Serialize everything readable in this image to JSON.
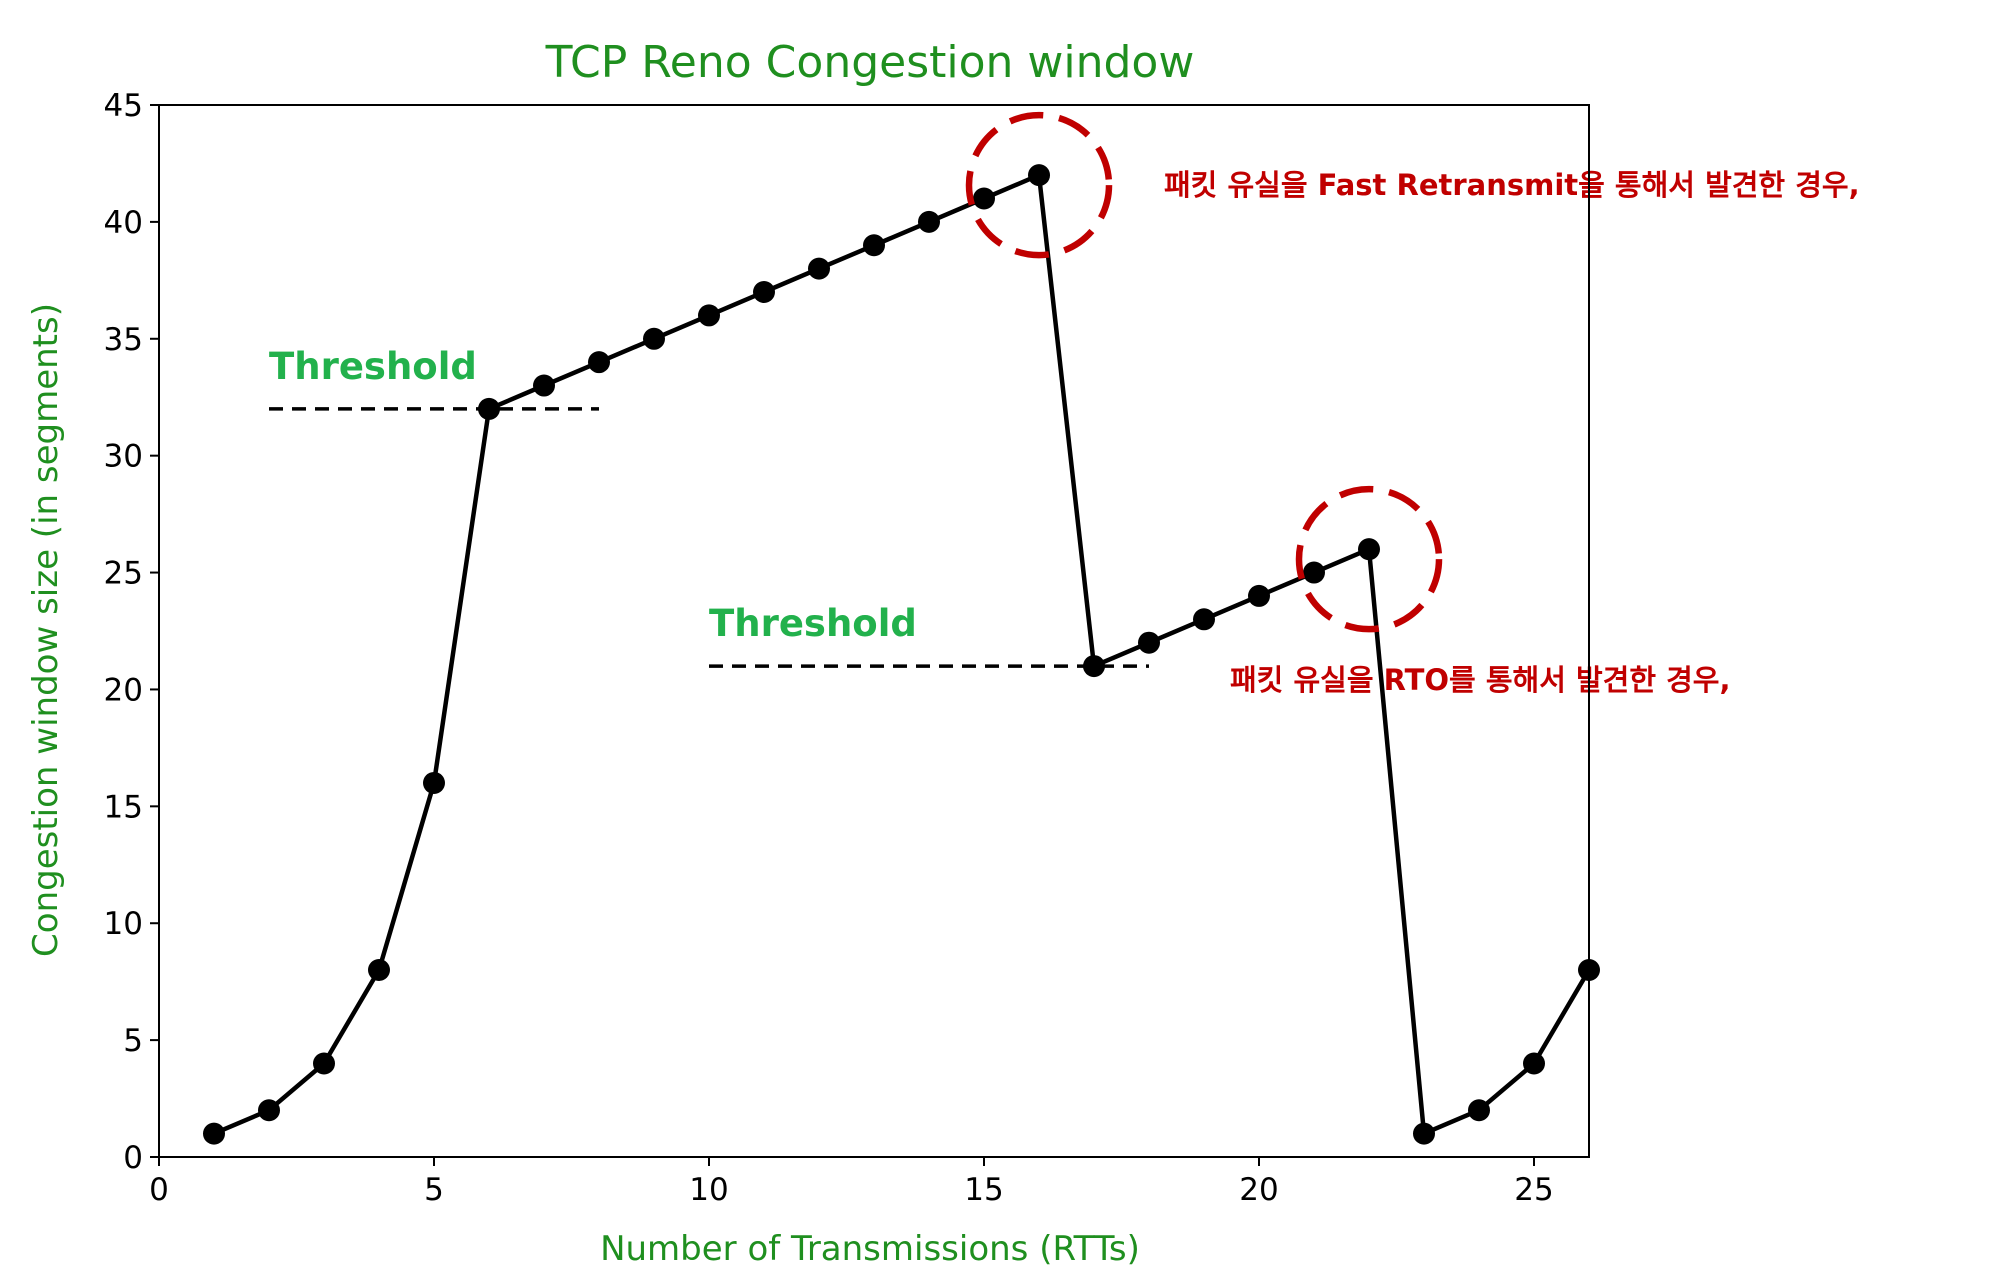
{
  "chart_data": {
    "type": "line",
    "title": "TCP Reno Congestion window",
    "xlabel": "Number of Transmissions (RTTs)",
    "ylabel": "Congestion window size (in segments)",
    "xlim": [
      0,
      26
    ],
    "ylim": [
      0,
      45
    ],
    "xticks": [
      0,
      5,
      10,
      15,
      20,
      25
    ],
    "yticks": [
      0,
      5,
      10,
      15,
      20,
      25,
      30,
      35,
      40,
      45
    ],
    "grid": false,
    "series": [
      {
        "x": [
          1,
          2,
          3,
          4,
          5,
          6,
          7,
          8,
          9,
          10,
          11,
          12,
          13,
          14,
          15,
          16,
          17,
          18,
          19,
          20,
          21,
          22,
          23,
          24,
          25,
          26
        ],
        "values": [
          1,
          2,
          4,
          8,
          16,
          32,
          33,
          34,
          35,
          36,
          37,
          38,
          39,
          40,
          41,
          42,
          21,
          22,
          23,
          24,
          25,
          26,
          1,
          2,
          4,
          8
        ]
      }
    ],
    "thresholds": [
      {
        "label": "Threshold",
        "y": 32,
        "x_from": 2,
        "x_to": 8
      },
      {
        "label": "Threshold",
        "y": 21,
        "x_from": 10,
        "x_to": 18
      }
    ],
    "annotations": [
      {
        "text": "패킷 유실을 Fast Retransmit을 통해서 발견한 경우,",
        "x": 16,
        "y": 42
      },
      {
        "text": "패킷 유실을 RTO를 통해서 발견한 경우,",
        "x": 22,
        "y": 26
      }
    ]
  },
  "colors": {
    "title": "#1f8f1f",
    "axis_label": "#1f8f1f",
    "threshold_label": "#22b14c",
    "annotation": "#c00000",
    "line": "#000000"
  }
}
